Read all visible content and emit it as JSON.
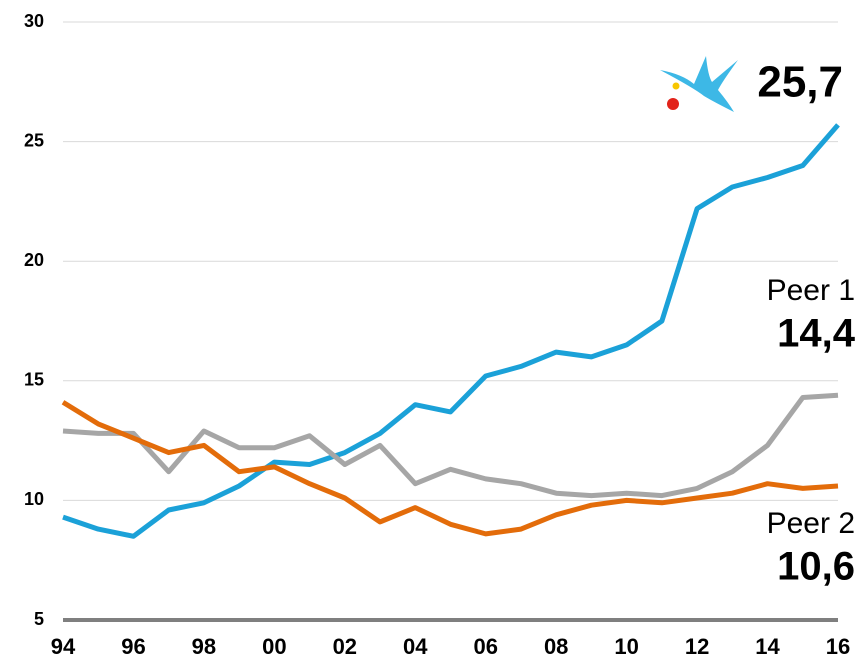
{
  "chart_data": {
    "type": "line",
    "categories": [
      "94",
      null,
      "96",
      null,
      "98",
      null,
      "00",
      null,
      "02",
      null,
      "04",
      null,
      "06",
      null,
      "08",
      null,
      "10",
      null,
      "12",
      null,
      "14",
      null,
      "16"
    ],
    "series": [
      {
        "color": "#1ba1d8",
        "values": [
          9.3,
          8.8,
          8.5,
          9.6,
          9.9,
          10.6,
          11.6,
          11.5,
          12.0,
          12.8,
          14.0,
          13.7,
          15.2,
          15.6,
          16.2,
          16.0,
          16.5,
          17.5,
          22.2,
          23.1,
          23.5,
          24.0,
          25.7
        ],
        "value_labels": [
          null,
          null,
          null,
          null,
          null,
          null,
          null,
          null,
          null,
          null,
          null,
          null,
          null,
          null,
          null,
          null,
          null,
          null,
          null,
          null,
          null,
          null,
          "25,7"
        ]
      },
      {
        "name": "Peer 1",
        "color": "#a6a6a6",
        "values": [
          12.9,
          12.8,
          12.8,
          11.2,
          12.9,
          12.2,
          12.2,
          12.7,
          11.5,
          12.3,
          10.7,
          11.3,
          10.9,
          10.7,
          10.3,
          10.2,
          10.3,
          10.2,
          10.5,
          11.2,
          12.3,
          14.3,
          14.4
        ],
        "value_labels": [
          null,
          null,
          null,
          null,
          null,
          null,
          null,
          null,
          null,
          null,
          null,
          null,
          null,
          null,
          null,
          null,
          null,
          null,
          null,
          null,
          null,
          null,
          "14,4"
        ]
      },
      {
        "name": "Peer 2",
        "color": "#e36c0a",
        "values": [
          14.1,
          13.2,
          12.6,
          12.0,
          12.3,
          11.2,
          11.4,
          10.7,
          10.1,
          9.1,
          9.7,
          9.0,
          8.6,
          8.8,
          9.4,
          9.8,
          10.0,
          9.9,
          10.1,
          10.3,
          10.7,
          10.5,
          10.6
        ],
        "value_labels": [
          null,
          null,
          null,
          null,
          null,
          null,
          null,
          null,
          null,
          null,
          null,
          null,
          null,
          null,
          null,
          null,
          null,
          null,
          null,
          null,
          null,
          null,
          "10,6"
        ]
      }
    ],
    "ylim": [
      5,
      30
    ],
    "yticks": [
      5,
      10,
      15,
      20,
      25,
      30
    ],
    "grid": true
  }
}
